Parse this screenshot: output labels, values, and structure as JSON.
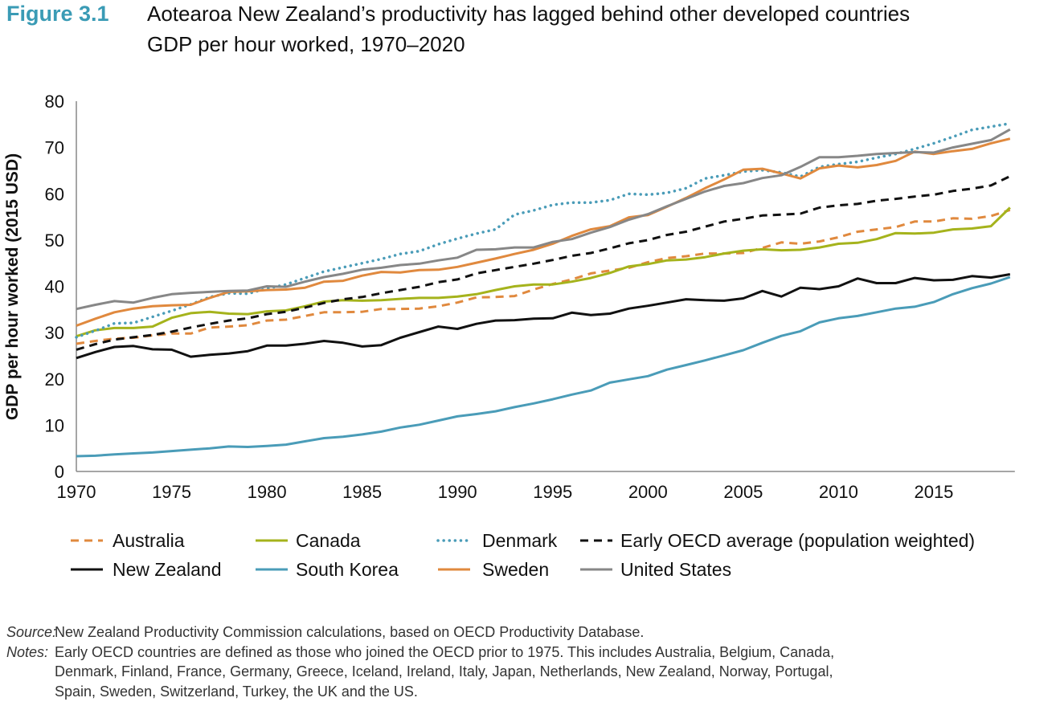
{
  "figure_label": "Figure 3.1",
  "chart_data": {
    "type": "line",
    "title": "Aotearoa New Zealand’s productivity has lagged behind other developed countries",
    "subtitle": "GDP per hour worked, 1970–2020",
    "xlabel": "",
    "ylabel": "GDP per hour worked (2015 USD)",
    "xlim": [
      1970,
      2019
    ],
    "ylim": [
      0,
      80
    ],
    "x_ticks": [
      "1970",
      "1975",
      "1980",
      "1985",
      "1990",
      "1995",
      "2000",
      "2005",
      "2010",
      "2015"
    ],
    "y_ticks": [
      "0",
      "10",
      "20",
      "30",
      "40",
      "50",
      "60",
      "70",
      "80"
    ],
    "x_start": 1970,
    "legend_position": "bottom",
    "series": [
      {
        "name": "Australia",
        "color": "#e0893e",
        "style": "dashed",
        "values": [
          27.6,
          28.2,
          28.7,
          28.9,
          29.4,
          29.8,
          29.8,
          31.1,
          31.3,
          31.6,
          32.6,
          32.8,
          33.6,
          34.4,
          34.4,
          34.5,
          35.1,
          35.1,
          35.2,
          35.7,
          36.5,
          37.6,
          37.7,
          37.9,
          39.3,
          40.5,
          41.5,
          42.8,
          43.4,
          44,
          45.2,
          46.1,
          46.5,
          47.1,
          47.1,
          47.2,
          48.3,
          49.5,
          49.2,
          49.7,
          50.6,
          51.8,
          52.3,
          52.8,
          54,
          54,
          54.7,
          54.6,
          55.2,
          56.5
        ]
      },
      {
        "name": "Canada",
        "color": "#a5b31c",
        "style": "solid",
        "values": [
          29.2,
          30.5,
          31,
          31,
          31.3,
          33.2,
          34.2,
          34.5,
          34.1,
          34,
          34.6,
          34.8,
          35.7,
          36.7,
          37,
          36.9,
          37,
          37.3,
          37.5,
          37.5,
          37.8,
          38.3,
          39.2,
          40,
          40.4,
          40.4,
          41,
          41.8,
          42.9,
          44.3,
          44.8,
          45.6,
          45.8,
          46.3,
          47.1,
          47.7,
          48,
          47.8,
          47.9,
          48.4,
          49.2,
          49.4,
          50.2,
          51.5,
          51.4,
          51.6,
          52.3,
          52.5,
          53,
          57
        ]
      },
      {
        "name": "Denmark",
        "color": "#4a9cb8",
        "style": "dotted",
        "values": [
          29,
          30.4,
          32,
          32.1,
          33.4,
          34.7,
          36.1,
          37.7,
          38.5,
          38.4,
          39.5,
          40.4,
          41.8,
          43.2,
          44.1,
          45,
          45.9,
          47,
          47.6,
          49.1,
          50.3,
          51.4,
          52.3,
          55.5,
          56.4,
          57.6,
          58.1,
          58.1,
          58.6,
          60,
          59.8,
          60.2,
          61.2,
          63.3,
          64,
          64.8,
          65.1,
          64.6,
          63.7,
          65.8,
          66.4,
          66.9,
          67.8,
          68.6,
          69.7,
          70.9,
          72.3,
          73.8,
          74.5,
          75.2
        ]
      },
      {
        "name": "Early OECD average (population weighted)",
        "color": "#111111",
        "style": "dashed",
        "values": [
          26.3,
          27.5,
          28.5,
          29,
          29.5,
          30.2,
          31.1,
          31.9,
          32.6,
          33.1,
          34,
          34.5,
          35.4,
          36.4,
          37.2,
          37.7,
          38.5,
          39.2,
          39.9,
          40.9,
          41.5,
          42.8,
          43.5,
          44.2,
          44.9,
          45.7,
          46.6,
          47.2,
          48.2,
          49.3,
          50,
          51.1,
          51.8,
          52.9,
          54,
          54.6,
          55.3,
          55.5,
          55.7,
          57,
          57.5,
          57.8,
          58.5,
          58.9,
          59.4,
          59.8,
          60.6,
          61.1,
          61.8,
          63.8
        ]
      },
      {
        "name": "New Zealand",
        "color": "#111111",
        "style": "solid",
        "values": [
          24.5,
          25.8,
          26.9,
          27.1,
          26.4,
          26.3,
          24.8,
          25.2,
          25.5,
          26,
          27.2,
          27.2,
          27.6,
          28.2,
          27.8,
          27,
          27.3,
          28.9,
          30.1,
          31.3,
          30.8,
          31.9,
          32.6,
          32.7,
          33,
          33.1,
          34.3,
          33.8,
          34.1,
          35.2,
          35.8,
          36.5,
          37.2,
          37,
          36.9,
          37.4,
          39,
          37.8,
          39.7,
          39.4,
          40,
          41.7,
          40.7,
          40.7,
          41.8,
          41.3,
          41.4,
          42.2,
          41.9,
          42.6
        ]
      },
      {
        "name": "South Korea",
        "color": "#4a9cb8",
        "style": "solid",
        "values": [
          3.3,
          3.4,
          3.7,
          3.9,
          4.1,
          4.4,
          4.7,
          5,
          5.4,
          5.3,
          5.5,
          5.8,
          6.5,
          7.2,
          7.5,
          8,
          8.6,
          9.5,
          10.1,
          11,
          11.9,
          12.4,
          13,
          13.9,
          14.7,
          15.6,
          16.6,
          17.5,
          19.2,
          19.9,
          20.6,
          22,
          23,
          24,
          25.1,
          26.2,
          27.8,
          29.3,
          30.3,
          32.2,
          33.1,
          33.6,
          34.4,
          35.2,
          35.6,
          36.6,
          38.3,
          39.6,
          40.6,
          42
        ]
      },
      {
        "name": "Sweden",
        "color": "#e0893e",
        "style": "solid",
        "values": [
          31.5,
          33,
          34.4,
          35.2,
          35.7,
          35.9,
          36,
          37.5,
          38.8,
          38.9,
          39.2,
          39.3,
          39.7,
          41,
          41.2,
          42.3,
          43.1,
          43,
          43.5,
          43.6,
          44.2,
          45.1,
          46,
          47,
          47.9,
          49.2,
          50.9,
          52.3,
          53,
          54.9,
          55.4,
          57.2,
          59.1,
          61.2,
          63.1,
          65.2,
          65.4,
          64.4,
          63.3,
          65.5,
          66.1,
          65.7,
          66.2,
          67.1,
          69.1,
          68.6,
          69.2,
          69.7,
          70.9,
          71.9
        ]
      },
      {
        "name": "United States",
        "color": "#878787",
        "style": "solid",
        "values": [
          35.1,
          36,
          36.8,
          36.5,
          37.5,
          38.3,
          38.6,
          38.8,
          39,
          39.1,
          40,
          39.9,
          41,
          42,
          42.7,
          43.6,
          44,
          44.6,
          44.9,
          45.6,
          46.2,
          47.9,
          48,
          48.4,
          48.4,
          49.6,
          50.2,
          51.6,
          52.8,
          54.4,
          55.6,
          57.3,
          58.9,
          60.5,
          61.7,
          62.3,
          63.4,
          64,
          65.8,
          67.9,
          67.9,
          68.2,
          68.6,
          68.8,
          69,
          68.9,
          70,
          70.8,
          71.6,
          73.9
        ]
      }
    ]
  },
  "source": {
    "label": "Source:",
    "text": "New Zealand Productivity Commission calculations, based on OECD Productivity Database."
  },
  "notes": {
    "label": "Notes:",
    "lines": [
      "Early OECD countries are defined as those who joined the OECD prior to 1975. This includes Australia, Belgium, Canada,",
      "Denmark, Finland, France, Germany, Greece, Iceland, Ireland, Italy, Japan, Netherlands, New Zealand, Norway, Portugal,",
      "Spain, Sweden, Switzerland, Turkey, the UK and the US."
    ]
  }
}
